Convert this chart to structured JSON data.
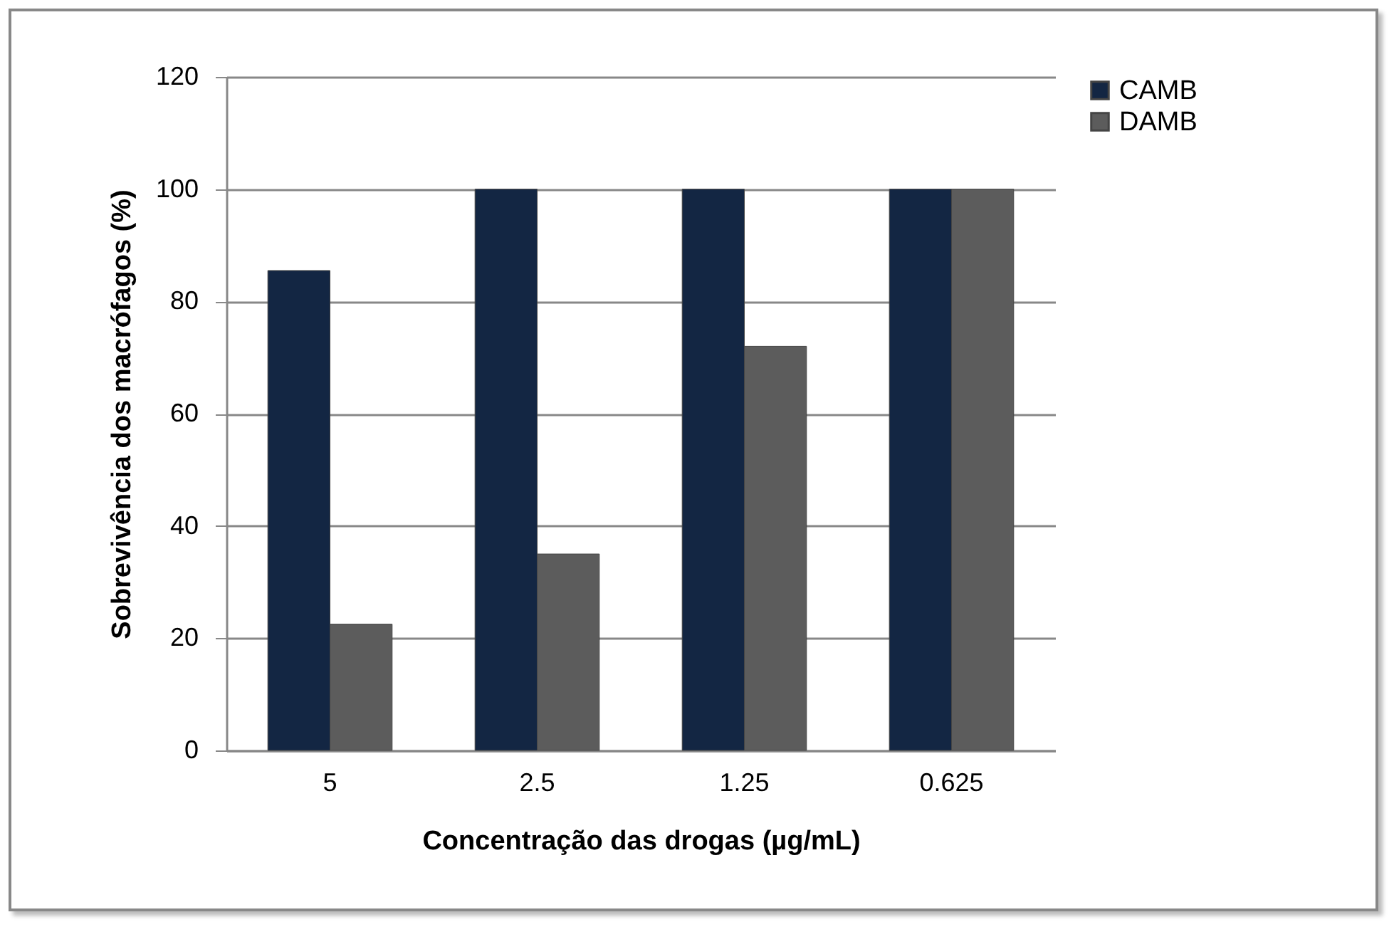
{
  "chart_data": {
    "type": "bar",
    "xlabel": "Concentração das drogas (µg/mL)",
    "ylabel": "Sobrevivência dos macrófagos (%)",
    "categories": [
      "5",
      "2.5",
      "1.25",
      "0.625"
    ],
    "series": [
      {
        "name": "CAMB",
        "color": "#132643",
        "values": [
          85.5,
          100,
          100,
          100
        ]
      },
      {
        "name": "DAMB",
        "color": "#5c5c5c",
        "values": [
          22.5,
          35,
          72,
          100
        ]
      }
    ],
    "ylim": [
      0,
      120
    ],
    "yticks": [
      0,
      20,
      40,
      60,
      80,
      100,
      120
    ],
    "grid": "y",
    "legend": "right"
  }
}
